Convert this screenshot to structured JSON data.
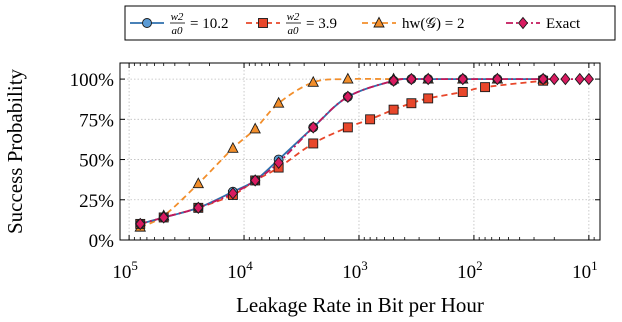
{
  "chart_data": {
    "type": "line",
    "xlabel": "Leakage Rate in Bit per Hour",
    "ylabel": "Success Probability",
    "x_scale": "log-reversed",
    "x_ticks": [
      {
        "value": 100000,
        "base": "10",
        "exp": "5"
      },
      {
        "value": 10000,
        "base": "10",
        "exp": "4"
      },
      {
        "value": 1000,
        "base": "10",
        "exp": "3"
      },
      {
        "value": 100,
        "base": "10",
        "exp": "2"
      },
      {
        "value": 10,
        "base": "10",
        "exp": "1"
      }
    ],
    "xlim": [
      120000,
      8
    ],
    "ylim": [
      0,
      1.1
    ],
    "y_ticks": [
      {
        "value": 0,
        "label": "0%"
      },
      {
        "value": 0.25,
        "label": "25%"
      },
      {
        "value": 0.5,
        "label": "50%"
      },
      {
        "value": 0.75,
        "label": "75%"
      },
      {
        "value": 1.0,
        "label": "100%"
      }
    ],
    "grid": true,
    "legend_position": "top",
    "series": [
      {
        "key": "s1",
        "legend": {
          "frac_num": "w2",
          "frac_den": "a0",
          "rest": "= 10.2"
        },
        "color": "#2e6fad",
        "marker_fill": "#5b9bd5",
        "marker": "circle",
        "line": "solid",
        "x": [
          80000,
          50000,
          25000,
          12500,
          8000,
          5000,
          2500,
          1250,
          500,
          350,
          250,
          125,
          62.5,
          25
        ],
        "y": [
          0.1,
          0.14,
          0.2,
          0.3,
          0.37,
          0.5,
          0.7,
          0.89,
          0.99,
          1.0,
          1.0,
          1.0,
          1.0,
          1.0
        ]
      },
      {
        "key": "s2",
        "legend": {
          "frac_num": "w2",
          "frac_den": "a0",
          "rest": "= 3.9"
        },
        "color": "#e8472b",
        "marker_fill": "#e8472b",
        "marker": "square",
        "line": "dashed",
        "x": [
          80000,
          50000,
          25000,
          12500,
          8000,
          5000,
          2500,
          1250,
          800,
          500,
          350,
          250,
          125,
          80,
          25
        ],
        "y": [
          0.1,
          0.14,
          0.2,
          0.28,
          0.37,
          0.45,
          0.6,
          0.7,
          0.75,
          0.81,
          0.85,
          0.88,
          0.92,
          0.95,
          0.99
        ]
      },
      {
        "key": "s3",
        "legend": {
          "label": "hw(𝒢) = 2"
        },
        "color": "#f28e2b",
        "marker_fill": "#f28e2b",
        "marker": "triangle",
        "line": "dashed",
        "x": [
          80000,
          50000,
          25000,
          12500,
          8000,
          5000,
          2500,
          1250,
          500,
          250,
          125,
          62.5,
          25
        ],
        "y": [
          0.08,
          0.15,
          0.35,
          0.57,
          0.69,
          0.85,
          0.98,
          1.0,
          1.0,
          1.0,
          1.0,
          1.0,
          1.0
        ]
      },
      {
        "key": "s4",
        "legend": {
          "label": "Exact"
        },
        "color": "#c2185b",
        "marker_fill": "#d81b60",
        "marker": "diamond",
        "line": "dashdot",
        "x": [
          80000,
          50000,
          25000,
          12500,
          8000,
          5000,
          2500,
          1250,
          500,
          350,
          250,
          125,
          62.5,
          25,
          20,
          16,
          12,
          10
        ],
        "y": [
          0.1,
          0.14,
          0.2,
          0.29,
          0.37,
          0.48,
          0.7,
          0.89,
          0.99,
          1.0,
          1.0,
          1.0,
          1.0,
          1.0,
          1.0,
          1.0,
          1.0,
          1.0
        ]
      }
    ]
  }
}
